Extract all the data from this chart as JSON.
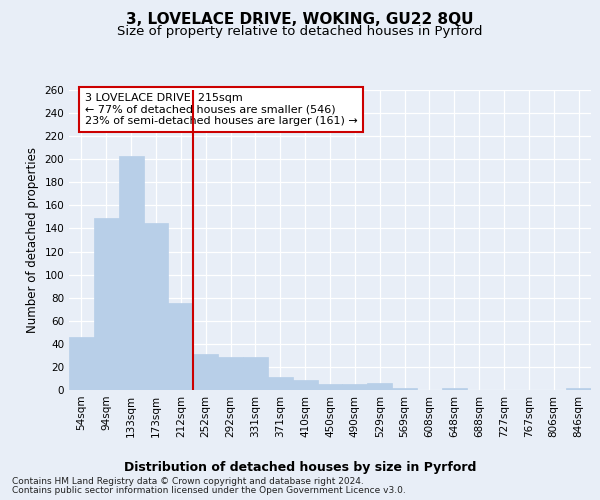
{
  "title": "3, LOVELACE DRIVE, WOKING, GU22 8QU",
  "subtitle": "Size of property relative to detached houses in Pyrford",
  "xlabel": "Distribution of detached houses by size in Pyrford",
  "ylabel": "Number of detached properties",
  "categories": [
    "54sqm",
    "94sqm",
    "133sqm",
    "173sqm",
    "212sqm",
    "252sqm",
    "292sqm",
    "331sqm",
    "371sqm",
    "410sqm",
    "450sqm",
    "490sqm",
    "529sqm",
    "569sqm",
    "608sqm",
    "648sqm",
    "688sqm",
    "727sqm",
    "767sqm",
    "806sqm",
    "846sqm"
  ],
  "values": [
    46,
    149,
    203,
    145,
    75,
    31,
    29,
    29,
    11,
    9,
    5,
    5,
    6,
    2,
    0,
    2,
    0,
    0,
    0,
    0,
    2
  ],
  "bar_color": "#b8cfe8",
  "bar_edge_color": "#b8cfe8",
  "vline_x_idx": 4,
  "vline_color": "#cc0000",
  "annotation_line1": "3 LOVELACE DRIVE: 215sqm",
  "annotation_line2": "← 77% of detached houses are smaller (546)",
  "annotation_line3": "23% of semi-detached houses are larger (161) →",
  "annotation_box_facecolor": "#ffffff",
  "annotation_box_edgecolor": "#cc0000",
  "ylim": [
    0,
    260
  ],
  "yticks": [
    0,
    20,
    40,
    60,
    80,
    100,
    120,
    140,
    160,
    180,
    200,
    220,
    240,
    260
  ],
  "footer_line1": "Contains HM Land Registry data © Crown copyright and database right 2024.",
  "footer_line2": "Contains public sector information licensed under the Open Government Licence v3.0.",
  "bg_color": "#e8eef7",
  "plot_bg_color": "#e8eef7",
  "title_fontsize": 11,
  "subtitle_fontsize": 9.5,
  "xlabel_fontsize": 9,
  "ylabel_fontsize": 8.5,
  "tick_fontsize": 7.5,
  "annotation_fontsize": 8,
  "footer_fontsize": 6.5
}
